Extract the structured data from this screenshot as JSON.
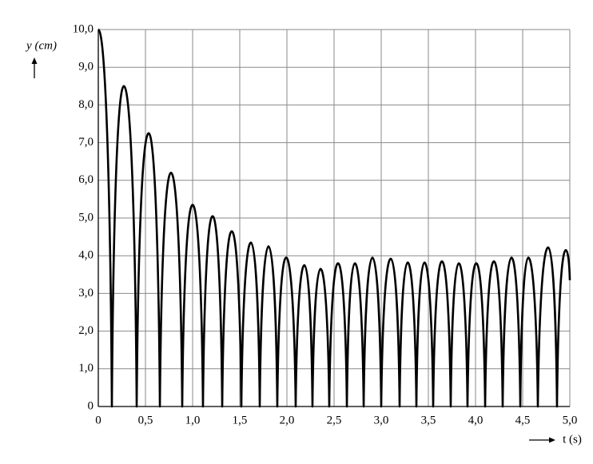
{
  "chart_data": {
    "type": "line",
    "x_label": "t (s)",
    "y_label": "y (cm)",
    "x": [
      0,
      0.144,
      0.271,
      0.407,
      0.534,
      0.653,
      0.771,
      0.89,
      1.0,
      1.11,
      1.212,
      1.314,
      1.415,
      1.517,
      1.619,
      1.712,
      1.805,
      1.898,
      1.992,
      2.093,
      2.186,
      2.271,
      2.356,
      2.449,
      2.542,
      2.636,
      2.72,
      2.814,
      2.907,
      3.0,
      3.102,
      3.195,
      3.28,
      3.373,
      3.458,
      3.551,
      3.644,
      3.737,
      3.822,
      3.915,
      4.008,
      4.102,
      4.195,
      4.288,
      4.381,
      4.475,
      4.559,
      4.661,
      4.771,
      4.864,
      4.958,
      5.0
    ],
    "values": [
      10.0,
      0,
      8.5,
      0,
      7.25,
      0,
      6.2,
      0,
      5.35,
      0,
      5.05,
      0,
      4.65,
      0,
      4.35,
      0,
      4.25,
      0,
      3.95,
      0,
      3.75,
      0,
      3.65,
      0,
      3.8,
      0,
      3.8,
      0,
      3.95,
      0,
      3.92,
      0,
      3.82,
      0,
      3.82,
      0,
      3.85,
      0,
      3.8,
      0,
      3.8,
      0,
      3.85,
      0,
      3.95,
      0,
      3.95,
      0,
      4.22,
      0,
      4.15,
      3.35
    ],
    "color": "#000000",
    "xlim": [
      0,
      5
    ],
    "ylim": [
      0,
      10
    ],
    "xticks": [
      0,
      {
        "value": 0.5,
        "label": "0,5"
      },
      {
        "value": 1,
        "label": "1,0"
      },
      {
        "value": 1.5,
        "label": "1,5"
      },
      {
        "value": 2,
        "label": "2,0"
      },
      {
        "value": 2.5,
        "label": "2,5"
      },
      {
        "value": 3,
        "label": "3,0"
      },
      {
        "value": 3.5,
        "label": "3,5"
      },
      {
        "value": 4,
        "label": "4,0"
      },
      {
        "value": 4.5,
        "label": "4,5"
      },
      {
        "value": 5,
        "label": "5,0"
      }
    ],
    "yticks": [
      0,
      {
        "value": 1,
        "label": "1,0"
      },
      {
        "value": 2,
        "label": "2,0"
      },
      {
        "value": 3,
        "label": "3,0"
      },
      {
        "value": 4,
        "label": "4,0"
      },
      {
        "value": 5,
        "label": "5,0"
      },
      {
        "value": 6,
        "label": "6,0"
      },
      {
        "value": 7,
        "label": "7,0"
      },
      {
        "value": 8,
        "label": "8,0"
      },
      {
        "value": 9,
        "label": "9,0"
      },
      {
        "value": 10,
        "label": "10,0"
      }
    ],
    "grid": true
  }
}
